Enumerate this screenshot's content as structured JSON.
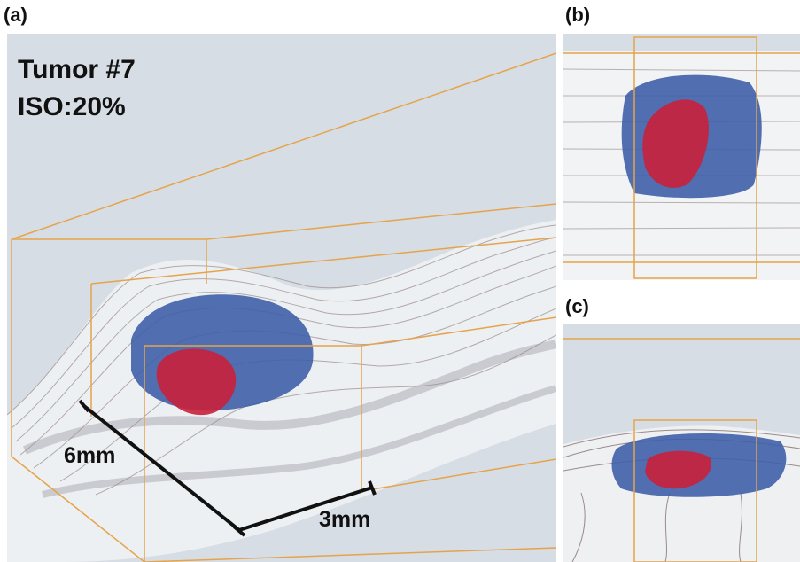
{
  "panels": {
    "a": {
      "label": "(a)",
      "title_line1": "Tumor #7",
      "title_line2": "ISO:20%",
      "scale_1": "6mm",
      "scale_2": "3mm"
    },
    "b": {
      "label": "(b)"
    },
    "c": {
      "label": "(c)"
    }
  },
  "colors": {
    "background": "#d6dde5",
    "tumor_outer": "#3f5fa8",
    "tumor_core": "#c8203a",
    "box_outline": "#e6a34a"
  }
}
